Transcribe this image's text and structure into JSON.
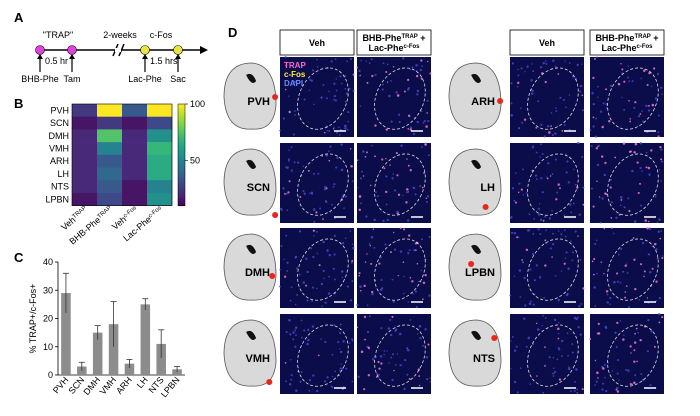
{
  "panels": [
    "A",
    "B",
    "C",
    "D"
  ],
  "timeline": {
    "trap": "\"TRAP\"",
    "gap": "2-weeks",
    "cfos": "c-Fos",
    "interval1": "0.5 hr",
    "interval2": "1.5 hrs",
    "events": [
      "BHB-Phe",
      "Tam",
      "Lac-Phe",
      "Sac"
    ]
  },
  "chart_data": [
    {
      "type": "heatmap",
      "rows": [
        "PVH",
        "SCN",
        "DMH",
        "VMH",
        "ARH",
        "LH",
        "NTS",
        "LPBN"
      ],
      "columns": [
        {
          "text": "Veh",
          "sup": "TRAP"
        },
        {
          "text": "BHB-Phe",
          "sup": "TRAP"
        },
        {
          "text": "Veh",
          "sup": "c-Fos"
        },
        {
          "text": "Lac-Phe",
          "sup": "c-Fos"
        }
      ],
      "values": [
        [
          25,
          100,
          35,
          100
        ],
        [
          15,
          25,
          15,
          30
        ],
        [
          20,
          75,
          20,
          55
        ],
        [
          20,
          50,
          20,
          70
        ],
        [
          20,
          35,
          20,
          65
        ],
        [
          20,
          40,
          20,
          65
        ],
        [
          20,
          35,
          15,
          50
        ],
        [
          15,
          30,
          15,
          55
        ]
      ],
      "colormap": "viridis",
      "zlim": [
        10,
        100
      ],
      "zticks": [
        50,
        100
      ]
    },
    {
      "type": "bar",
      "ylabel": "% TRAP+/c-Fos+",
      "categories": [
        "PVH",
        "SCN",
        "DMH",
        "VMH",
        "ARH",
        "LH",
        "NTS",
        "LPBN"
      ],
      "values": [
        29,
        3,
        15,
        18,
        4,
        25,
        11,
        2
      ],
      "errors": [
        7,
        1.5,
        2.5,
        8,
        1.5,
        2,
        5,
        1
      ],
      "color": "#8c8c8c",
      "ylim": [
        0,
        40
      ],
      "yticks": [
        0,
        10,
        20,
        30,
        40
      ]
    }
  ],
  "images": {
    "headers": [
      {
        "text": "Veh"
      },
      {
        "text": "BHB-Phe",
        "sup": "TRAP",
        "plus": " +",
        "line2": "Lac-Phe",
        "sup2": "c-Fos"
      }
    ],
    "legend": [
      "TRAP",
      "c-Fos",
      "DAPI"
    ],
    "left_regions": [
      "PVH",
      "SCN",
      "DMH",
      "VMH"
    ],
    "right_regions": [
      "ARH",
      "LH",
      "LPBN",
      "NTS"
    ]
  }
}
